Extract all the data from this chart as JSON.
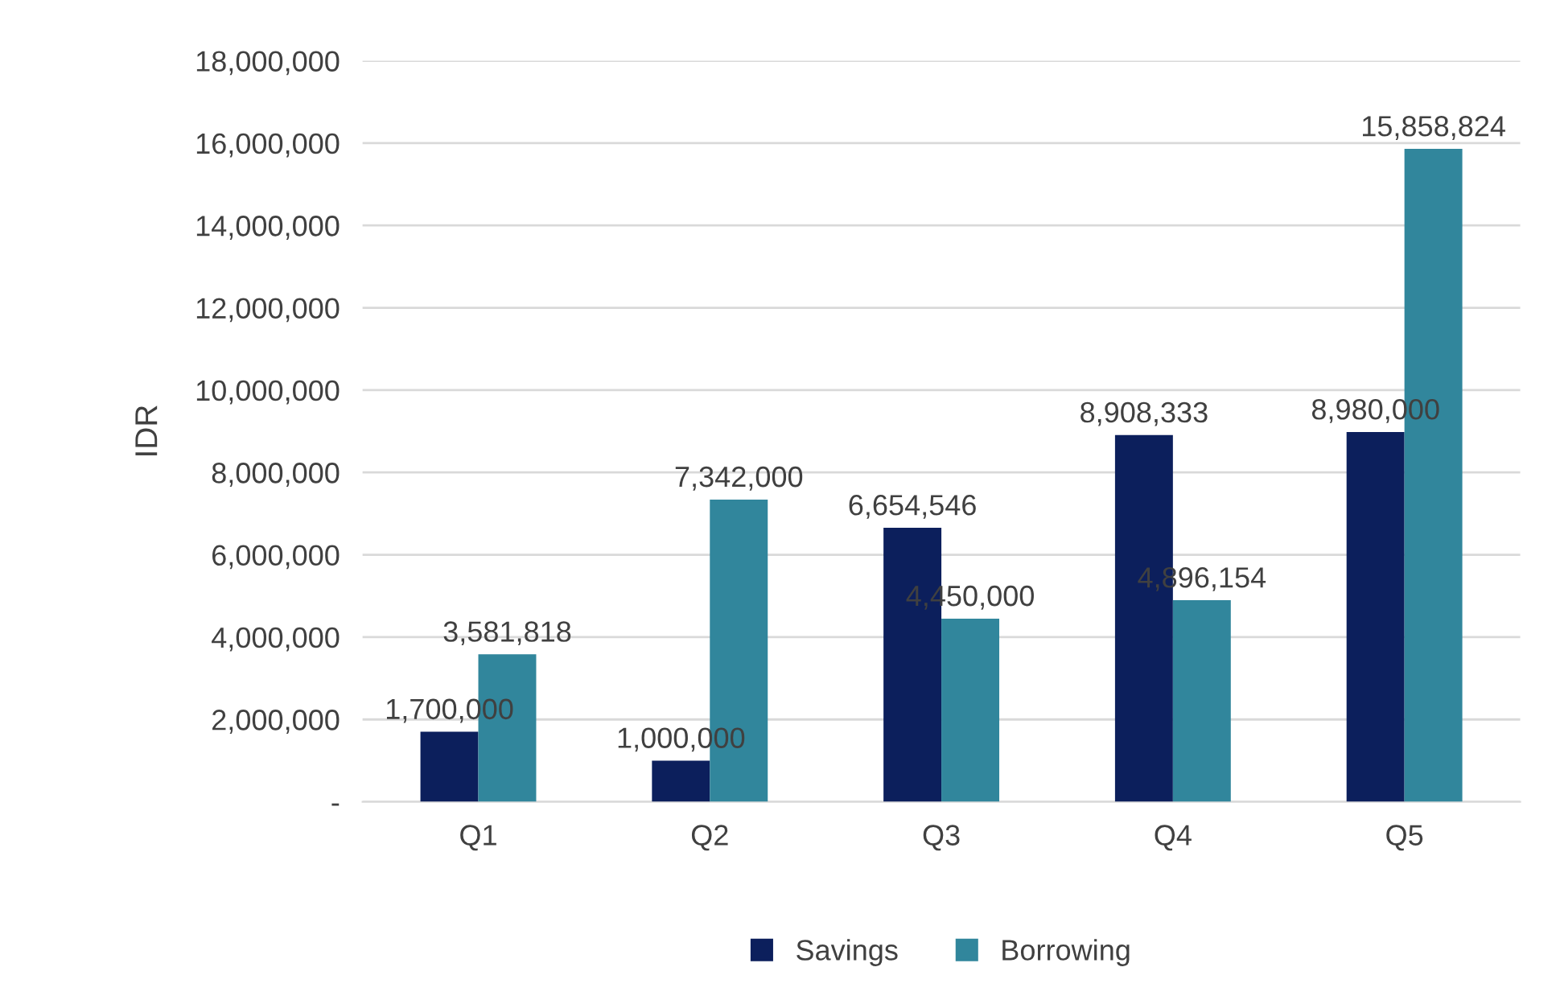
{
  "chart_data": {
    "type": "bar",
    "ylabel": "IDR",
    "categories": [
      "Q1",
      "Q2",
      "Q3",
      "Q4",
      "Q5"
    ],
    "series": [
      {
        "name": "Savings",
        "color": "#0c1f5c",
        "values": [
          1700000,
          1000000,
          6654546,
          8908333,
          8980000
        ],
        "value_labels": [
          "1,700,000",
          "1,000,000",
          "6,654,546",
          "8,908,333",
          "8,980,000"
        ]
      },
      {
        "name": "Borrowing",
        "color": "#31869c",
        "values": [
          3581818,
          7342000,
          4450000,
          4896154,
          15858824
        ],
        "value_labels": [
          "3,581,818",
          "7,342,000",
          "4,450,000",
          "4,896,154",
          "15,858,824"
        ]
      }
    ],
    "ylim": [
      0,
      18000000
    ],
    "yticks": [
      {
        "value": 0,
        "label": "-"
      },
      {
        "value": 2000000,
        "label": "2,000,000"
      },
      {
        "value": 4000000,
        "label": "4,000,000"
      },
      {
        "value": 6000000,
        "label": "6,000,000"
      },
      {
        "value": 8000000,
        "label": "8,000,000"
      },
      {
        "value": 10000000,
        "label": "10,000,000"
      },
      {
        "value": 12000000,
        "label": "12,000,000"
      },
      {
        "value": 14000000,
        "label": "14,000,000"
      },
      {
        "value": 16000000,
        "label": "16,000,000"
      },
      {
        "value": 18000000,
        "label": "18,000,000"
      }
    ],
    "grid": "y",
    "legend": "bottom"
  }
}
